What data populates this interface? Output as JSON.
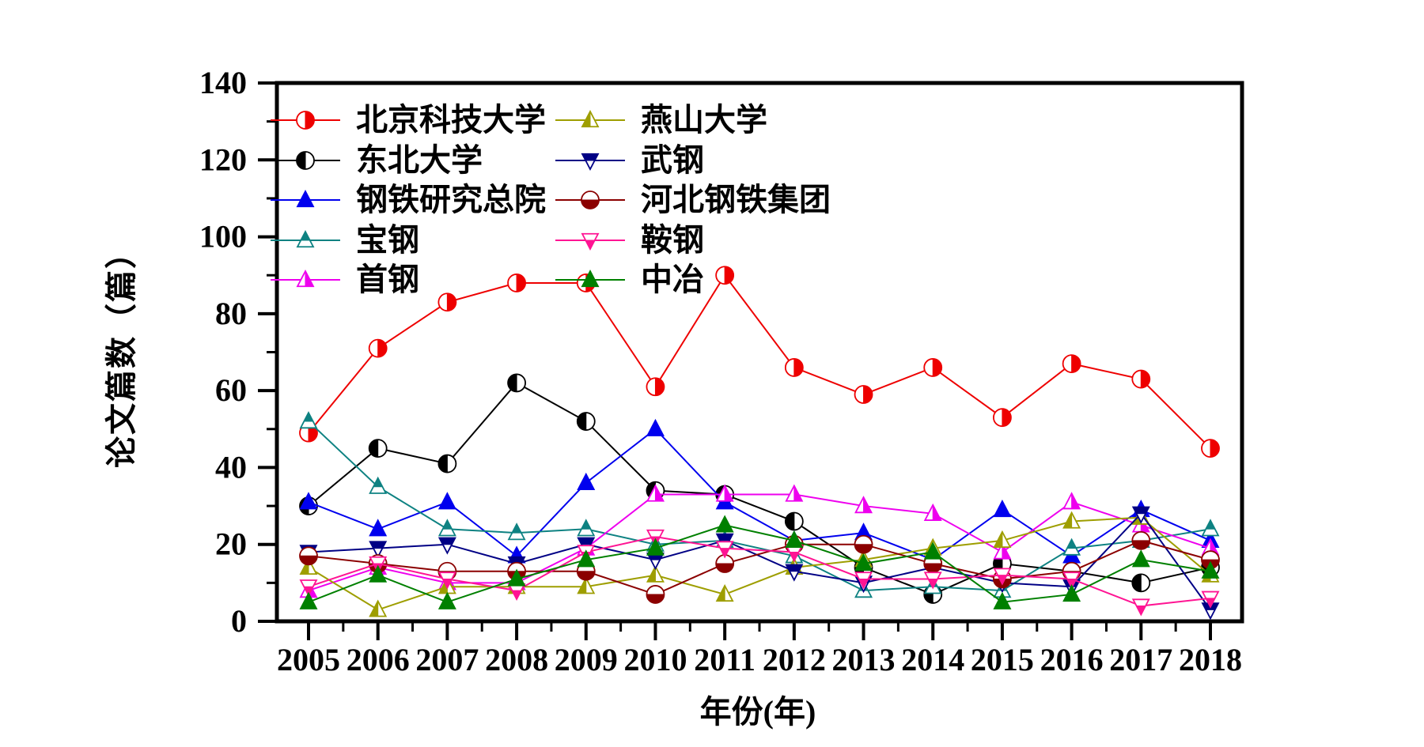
{
  "chart_data": {
    "type": "line",
    "title": "",
    "xlabel": "年份(年)",
    "ylabel": "论文篇数（篇）",
    "x": [
      2005,
      2006,
      2007,
      2008,
      2009,
      2010,
      2011,
      2012,
      2013,
      2014,
      2015,
      2016,
      2017,
      2018
    ],
    "ylim": [
      0,
      140
    ],
    "y_major_ticks": [
      0,
      20,
      40,
      60,
      80,
      100,
      120,
      140
    ],
    "y_minor_step": 10,
    "x_minor_step": 0.5,
    "grid": false,
    "legend_position": "inside-top, two columns",
    "series": [
      {
        "name": "北京科技大学",
        "color": "#ee0000",
        "marker": "circle-right-half",
        "values": [
          49,
          71,
          83,
          88,
          88,
          61,
          90,
          66,
          59,
          66,
          53,
          67,
          63,
          45
        ]
      },
      {
        "name": "东北大学",
        "color": "#000000",
        "marker": "circle-left-half",
        "values": [
          30,
          45,
          41,
          62,
          52,
          34,
          33,
          26,
          14,
          7,
          15,
          13,
          10,
          14
        ]
      },
      {
        "name": "钢铁研究总院",
        "color": "#0000ee",
        "marker": "triangle-up-full",
        "values": [
          31,
          24,
          31,
          17,
          36,
          50,
          31,
          21,
          23,
          16,
          29,
          17,
          29,
          21
        ]
      },
      {
        "name": "宝钢",
        "color": "#0e8282",
        "marker": "triangle-up-top-half",
        "values": [
          52,
          35,
          24,
          23,
          24,
          20,
          21,
          17,
          8,
          9,
          8,
          19,
          21,
          24
        ]
      },
      {
        "name": "首钢",
        "color": "#ee00ee",
        "marker": "triangle-up-right-half",
        "values": [
          8,
          14,
          10,
          10,
          19,
          33,
          33,
          33,
          30,
          28,
          18,
          31,
          25,
          19
        ]
      },
      {
        "name": "燕山大学",
        "color": "#9e9e00",
        "marker": "triangle-up-left-half",
        "values": [
          14,
          3,
          9,
          9,
          9,
          12,
          7,
          14,
          16,
          19,
          21,
          26,
          27,
          12
        ]
      },
      {
        "name": "武钢",
        "color": "#000085",
        "marker": "triangle-down-top-half",
        "values": [
          18,
          19,
          20,
          15,
          20,
          16,
          21,
          13,
          10,
          14,
          10,
          9,
          28,
          3
        ]
      },
      {
        "name": "河北钢铁集团",
        "color": "#8b0000",
        "marker": "circle-bottom-half",
        "values": [
          17,
          15,
          13,
          13,
          13,
          7,
          15,
          20,
          20,
          15,
          11,
          13,
          21,
          16
        ]
      },
      {
        "name": "鞍钢",
        "color": "#ff1493",
        "marker": "triangle-down-bottom-half",
        "values": [
          9,
          15,
          11,
          8,
          18,
          22,
          19,
          18,
          11,
          11,
          12,
          11,
          4,
          6
        ]
      },
      {
        "name": "中冶",
        "color": "#008000",
        "marker": "triangle-up-full",
        "values": [
          5,
          12,
          5,
          11,
          16,
          19,
          25,
          21,
          15,
          18,
          5,
          7,
          16,
          13
        ]
      }
    ],
    "legend_columns": [
      [
        0,
        1,
        2,
        3,
        4
      ],
      [
        5,
        6,
        7,
        8,
        9
      ]
    ]
  },
  "layout_text": {
    "xlabel": "年份(年)",
    "ylabel": "论文篇数（篇）"
  }
}
